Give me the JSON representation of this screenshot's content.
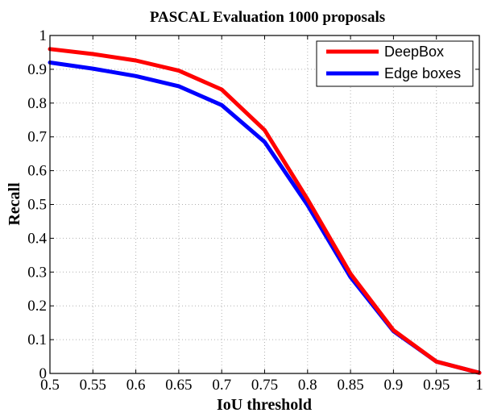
{
  "chart_data": {
    "type": "line",
    "title": "PASCAL Evaluation 1000 proposals",
    "xlabel": "IoU threshold",
    "ylabel": "Recall",
    "xlim": [
      0.5,
      1
    ],
    "ylim": [
      0,
      1
    ],
    "grid": true,
    "legend_position": "top-right",
    "x": [
      0.5,
      0.55,
      0.6,
      0.65,
      0.7,
      0.75,
      0.8,
      0.85,
      0.9,
      0.95,
      1.0
    ],
    "x_tick_labels": [
      "0.5",
      "0.55",
      "0.6",
      "0.65",
      "0.7",
      "0.75",
      "0.8",
      "0.85",
      "0.9",
      "0.95",
      "1"
    ],
    "y_ticks": [
      0,
      0.1,
      0.2,
      0.3,
      0.4,
      0.5,
      0.6,
      0.7,
      0.8,
      0.9,
      1
    ],
    "y_tick_labels": [
      "0",
      "0.1",
      "0.2",
      "0.3",
      "0.4",
      "0.5",
      "0.6",
      "0.7",
      "0.8",
      "0.9",
      "1"
    ],
    "series": [
      {
        "name": "DeepBox",
        "color": "#ff0000",
        "values": [
          0.96,
          0.945,
          0.926,
          0.896,
          0.84,
          0.72,
          0.515,
          0.295,
          0.128,
          0.035,
          0.002
        ]
      },
      {
        "name": "Edge boxes",
        "color": "#0000ff",
        "values": [
          0.92,
          0.902,
          0.88,
          0.85,
          0.794,
          0.685,
          0.498,
          0.285,
          0.125,
          0.035,
          0.002
        ]
      }
    ]
  }
}
